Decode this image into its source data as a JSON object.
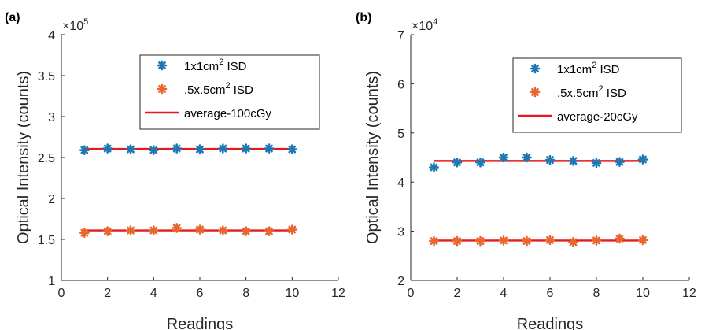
{
  "chart_data": [
    {
      "type": "scatter",
      "panel_label": "(a)",
      "xlabel": "Readings",
      "ylabel": "Optical Intensity (counts)",
      "xlim": [
        0,
        12
      ],
      "ylim": [
        100000,
        400000
      ],
      "xticks": [
        0,
        2,
        4,
        6,
        8,
        10,
        12
      ],
      "yticks": [
        100000,
        150000,
        200000,
        250000,
        300000,
        350000,
        400000
      ],
      "ytick_labels": [
        "1",
        "1.5",
        "2",
        "2.5",
        "3",
        "3.5",
        "4"
      ],
      "exponent_base": "×10",
      "exponent_power": "5",
      "legend_position": "top-right",
      "grid": false,
      "x": [
        1,
        2,
        3,
        4,
        5,
        6,
        7,
        8,
        9,
        10
      ],
      "series": [
        {
          "name_base": "1x1cm",
          "name_sup": "2",
          "name_suffix": " ISD",
          "marker": "asterisk",
          "color": "#1f77b4",
          "values": [
            259000,
            261000,
            260000,
            259000,
            261000,
            260000,
            261000,
            261000,
            261000,
            260000
          ]
        },
        {
          "name_base": ".5x.5cm",
          "name_sup": "2",
          "name_suffix": " ISD",
          "marker": "asterisk",
          "color": "#e8662e",
          "values": [
            158000,
            160000,
            161000,
            161000,
            164000,
            162000,
            161000,
            160000,
            160000,
            162000
          ]
        },
        {
          "name": "average-100cGy",
          "marker": "line",
          "color": "#e41a1c",
          "lines": [
            {
              "x": [
                1,
                10
              ],
              "y": 260500
            },
            {
              "x": [
                1,
                10
              ],
              "y": 161000
            }
          ]
        }
      ]
    },
    {
      "type": "scatter",
      "panel_label": "(b)",
      "xlabel": "Readings",
      "ylabel": "Optical Intensity (counts)",
      "xlim": [
        0,
        12
      ],
      "ylim": [
        20000,
        70000
      ],
      "xticks": [
        0,
        2,
        4,
        6,
        8,
        10,
        12
      ],
      "yticks": [
        20000,
        30000,
        40000,
        50000,
        60000,
        70000
      ],
      "ytick_labels": [
        "2",
        "3",
        "4",
        "5",
        "6",
        "7"
      ],
      "exponent_base": "×10",
      "exponent_power": "4",
      "legend_position": "top-right",
      "grid": false,
      "x": [
        1,
        2,
        3,
        4,
        5,
        6,
        7,
        8,
        9,
        10
      ],
      "series": [
        {
          "name_base": "1x1cm",
          "name_sup": "2",
          "name_suffix": " ISD",
          "marker": "asterisk",
          "color": "#1f77b4",
          "values": [
            43000,
            44000,
            44000,
            45000,
            45000,
            44500,
            44300,
            43900,
            44100,
            44600
          ]
        },
        {
          "name_base": ".5x.5cm",
          "name_sup": "2",
          "name_suffix": " ISD",
          "marker": "asterisk",
          "color": "#e8662e",
          "values": [
            28000,
            28000,
            28000,
            28100,
            28000,
            28200,
            27800,
            28100,
            28500,
            28200
          ]
        },
        {
          "name": "average-20cGy",
          "marker": "line",
          "color": "#e41a1c",
          "lines": [
            {
              "x": [
                1,
                10
              ],
              "y": 44300
            },
            {
              "x": [
                1,
                10
              ],
              "y": 28100
            }
          ]
        }
      ]
    }
  ]
}
